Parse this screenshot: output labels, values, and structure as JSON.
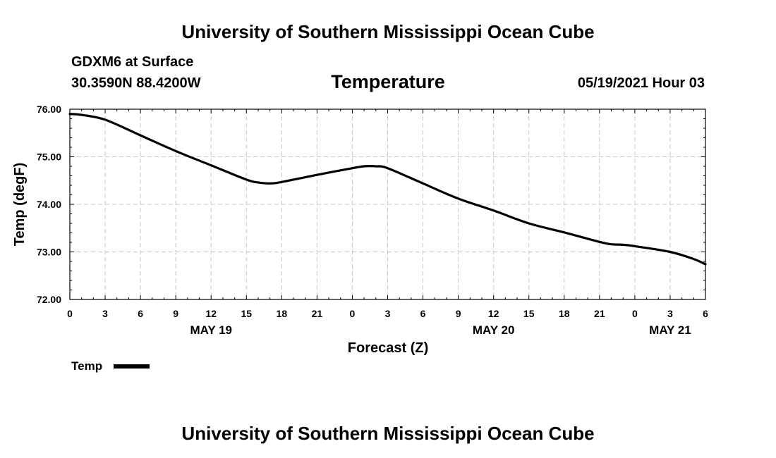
{
  "header": {
    "title": "University of Southern Mississippi Ocean Cube",
    "station": "GDXM6 at Surface",
    "location": "30.3590N  88.4200W",
    "variable": "Temperature",
    "datetime": "05/19/2021 Hour 03"
  },
  "footer": {
    "title": "University of Southern Mississippi Ocean Cube"
  },
  "legend": {
    "label": "Temp"
  },
  "colors": {
    "line": "#000000",
    "grid": "#c8c8c8",
    "frame": "#000000"
  },
  "chart_data": {
    "type": "line",
    "title": "Temperature",
    "xlabel": "Forecast (Z)",
    "ylabel": "Temp (degF)",
    "xlim": [
      0,
      54
    ],
    "ylim": [
      72.0,
      76.0
    ],
    "yticks": [
      "72.00",
      "73.00",
      "74.00",
      "75.00",
      "76.00"
    ],
    "yticks_values": [
      72,
      73,
      74,
      75,
      76
    ],
    "xticks_values": [
      0,
      3,
      6,
      9,
      12,
      15,
      18,
      21,
      24,
      27,
      30,
      33,
      36,
      39,
      42,
      45,
      48,
      51,
      54
    ],
    "xticks": [
      "0",
      "3",
      "6",
      "9",
      "12",
      "15",
      "18",
      "21",
      "0",
      "3",
      "6",
      "9",
      "12",
      "15",
      "18",
      "21",
      "0",
      "3",
      "6"
    ],
    "date_labels": [
      {
        "text": "MAY 19",
        "x": 12
      },
      {
        "text": "MAY 20",
        "x": 36
      },
      {
        "text": "MAY 21",
        "x": 51
      }
    ],
    "grid": true,
    "legend_position": "bottom-left",
    "series": [
      {
        "name": "Temp",
        "x": [
          0,
          1,
          3,
          6,
          9,
          12,
          15,
          16,
          17,
          18,
          21,
          24,
          25,
          26,
          27,
          30,
          33,
          36,
          39,
          42,
          45,
          46,
          47,
          48,
          51,
          53,
          54
        ],
        "values": [
          75.9,
          75.88,
          75.78,
          75.45,
          75.12,
          74.82,
          74.52,
          74.46,
          74.44,
          74.47,
          74.62,
          74.76,
          74.8,
          74.8,
          74.76,
          74.44,
          74.12,
          73.87,
          73.6,
          73.41,
          73.21,
          73.16,
          73.15,
          73.12,
          73.0,
          72.85,
          72.74
        ]
      }
    ]
  }
}
